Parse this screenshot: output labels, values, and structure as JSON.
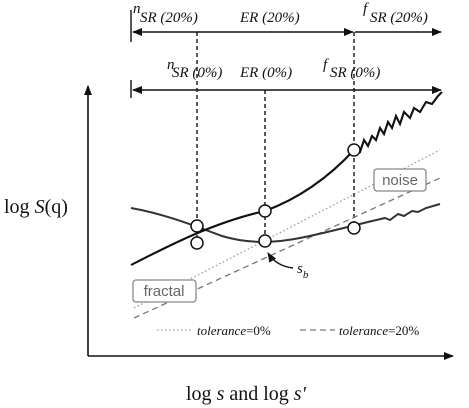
{
  "top_row": {
    "nsr_sup": "n",
    "nsr_label": "SR (20%)",
    "er_label": "ER (20%)",
    "fsr_sup": "f",
    "fsr_label": "SR (20%)"
  },
  "second_row": {
    "nsr_sup": "n",
    "nsr_label": "SR (0%)",
    "er_label": "ER (0%)",
    "fsr_sup": "f",
    "fsr_label": "SR (0%)"
  },
  "axes": {
    "ylabel_prefix": "log ",
    "ylabel_S": "S",
    "ylabel_q": "(q)",
    "xlabel_prefix": "log ",
    "xlabel_s": "s",
    "xlabel_and": " and log ",
    "xlabel_s2": "s'"
  },
  "annotations": {
    "noise": "noise",
    "fractal": "fractal",
    "sb_main": "s",
    "sb_sub": "b"
  },
  "legend": {
    "tol0_it": "tolerance",
    "tol0_val": "=0%",
    "tol20_it": "tolerance",
    "tol20_val": "=20%"
  },
  "colors": {
    "ink": "#111111",
    "dark_gray": "#333333",
    "mid_gray": "#777777",
    "light_gray": "#999999"
  }
}
